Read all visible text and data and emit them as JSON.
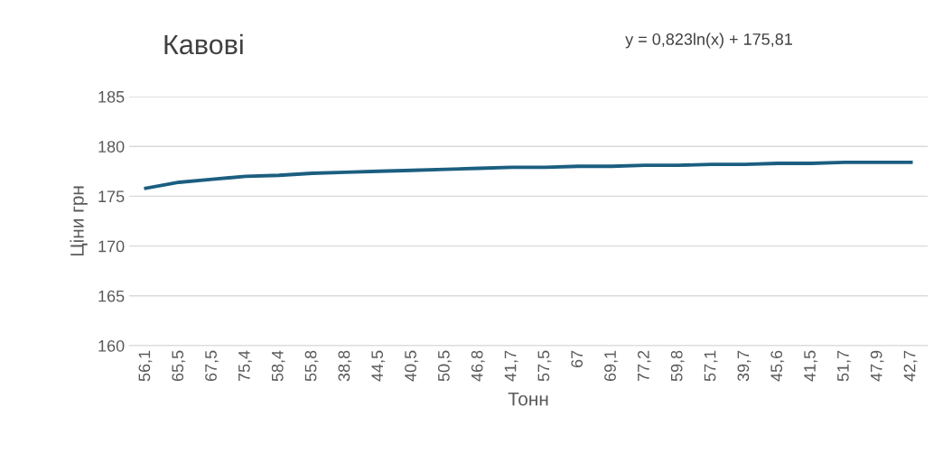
{
  "chart_data": {
    "type": "line",
    "title": "Кавові",
    "xlabel": "Тонн",
    "ylabel": "Ціни грн",
    "annotations": [
      "y = 0,823ln(x) + 175,81"
    ],
    "categories": [
      "56,1",
      "65,5",
      "67,5",
      "75,4",
      "58,4",
      "55,8",
      "38,8",
      "44,5",
      "40,5",
      "50,5",
      "46,8",
      "41,7",
      "57,5",
      "67",
      "69,1",
      "77,2",
      "59,8",
      "57,1",
      "39,7",
      "45,6",
      "41,5",
      "51,7",
      "47,9",
      "42,7"
    ],
    "series": [
      {
        "color": "#1b5e80",
        "values": [
          175.8,
          176.4,
          176.7,
          177.0,
          177.1,
          177.3,
          177.4,
          177.5,
          177.6,
          177.7,
          177.8,
          177.9,
          177.9,
          178.0,
          178.0,
          178.1,
          178.1,
          178.2,
          178.2,
          178.3,
          178.3,
          178.4,
          178.4,
          178.4
        ]
      }
    ],
    "ylim": [
      160,
      185
    ],
    "yticks": [
      160,
      165,
      170,
      175,
      180,
      185
    ],
    "grid": "y",
    "legend": false,
    "marker": "none",
    "line_style": "solid"
  }
}
